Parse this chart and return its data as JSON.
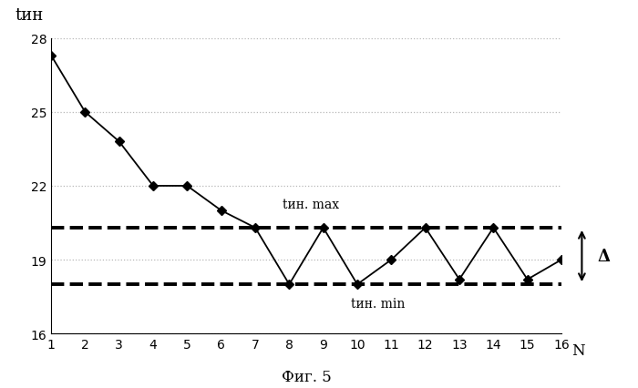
{
  "x": [
    1,
    2,
    3,
    4,
    5,
    6,
    7,
    8,
    9,
    10,
    11,
    12,
    13,
    14,
    15,
    16
  ],
  "y": [
    27.3,
    25.0,
    23.8,
    22.0,
    22.0,
    21.0,
    20.3,
    18.0,
    20.3,
    18.0,
    19.0,
    20.3,
    18.2,
    20.3,
    18.2,
    19.0
  ],
  "t_max": 20.3,
  "t_min": 18.0,
  "ylim": [
    16,
    28
  ],
  "xlim": [
    1,
    16
  ],
  "yticks": [
    16,
    19,
    22,
    25,
    28
  ],
  "xticks": [
    1,
    2,
    3,
    4,
    5,
    6,
    7,
    8,
    9,
    10,
    11,
    12,
    13,
    14,
    15,
    16
  ],
  "line_color": "#000000",
  "dashed_color": "#000000",
  "grid_color": "#999999",
  "background_color": "#ffffff",
  "marker": "D",
  "marker_size": 5,
  "line_width": 1.3,
  "dashed_linewidth": 2.8,
  "fig_label": "Фиг. 5"
}
